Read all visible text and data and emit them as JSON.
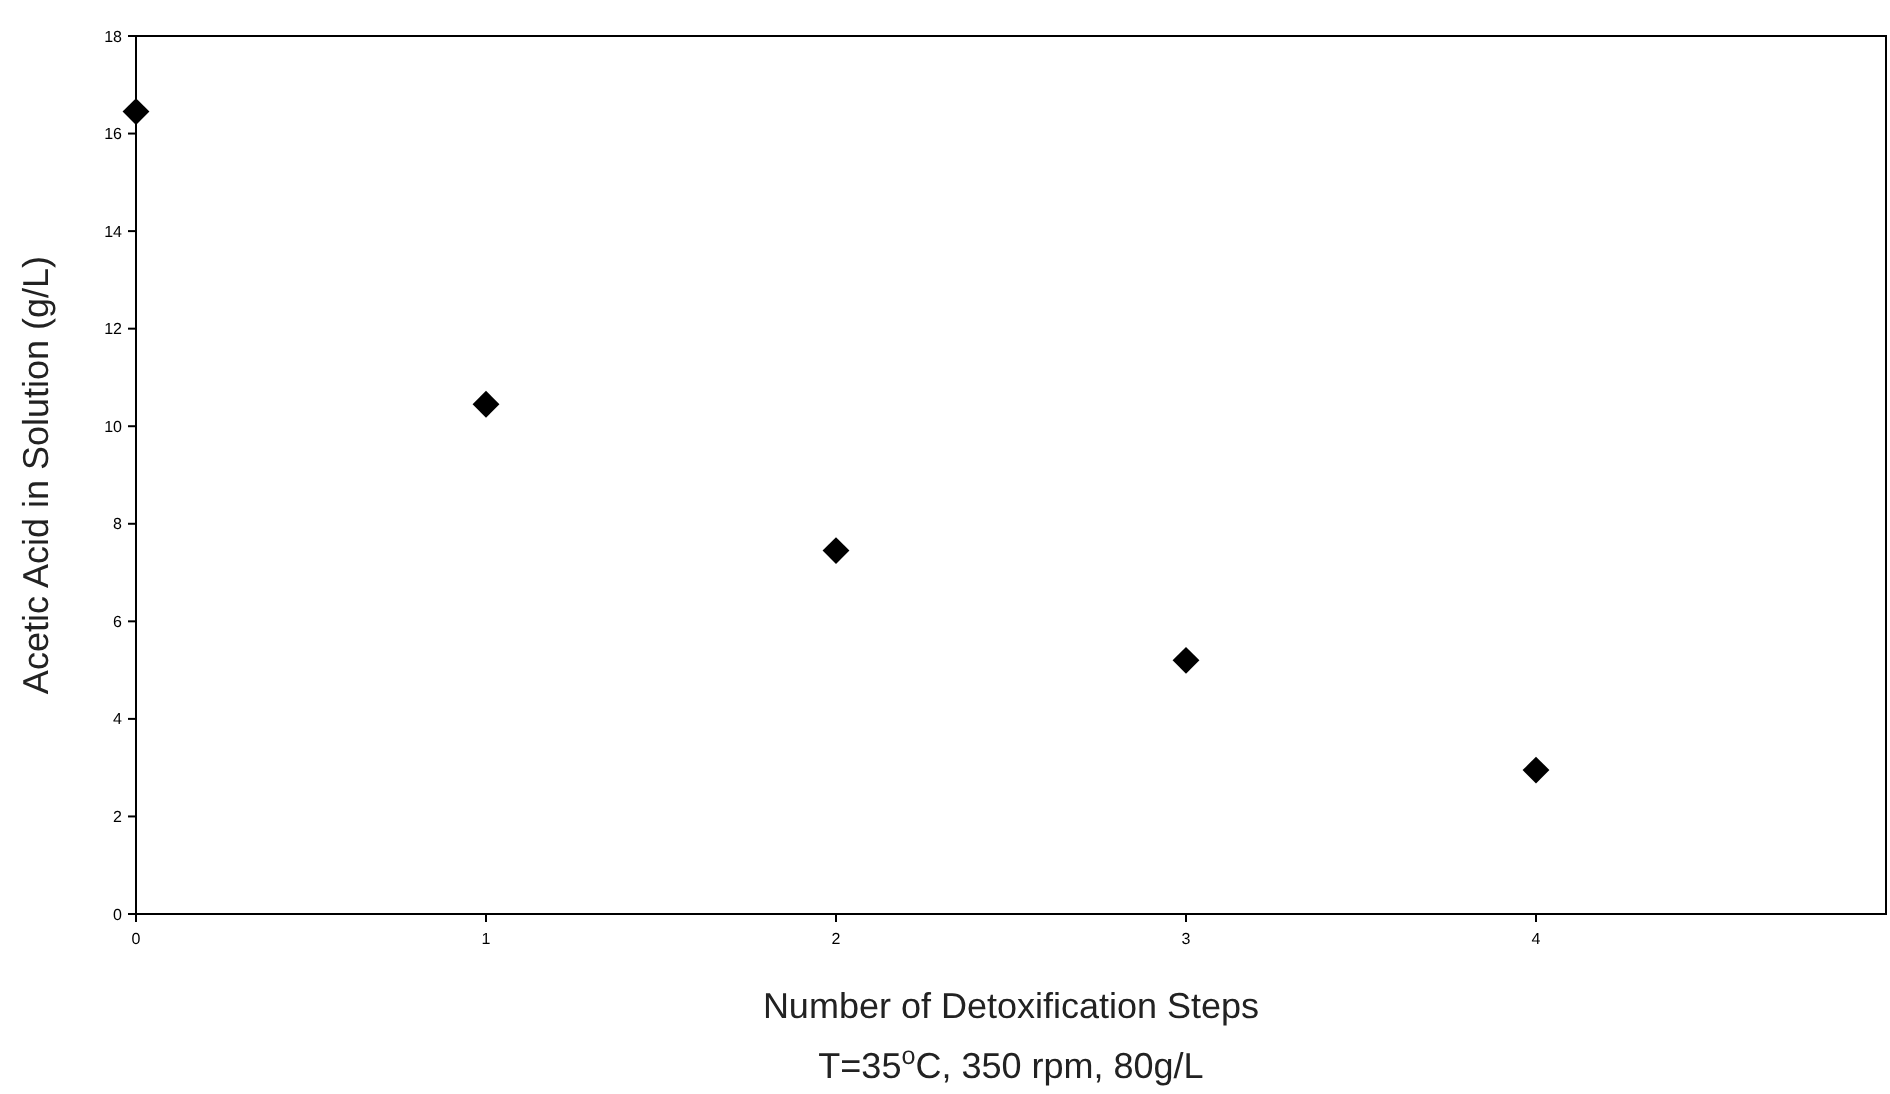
{
  "chart_data": {
    "type": "scatter",
    "xlabel": "Number of Detoxification Steps",
    "ylabel": "Acetic Acid in Solution (g/L)",
    "annotations": [
      "T=35$^{o}$C, 350 rpm, 80g/L"
    ],
    "x": [
      0,
      1,
      2,
      3,
      4
    ],
    "series": [
      {
        "color": "#000000",
        "values": [
          16.45,
          10.45,
          7.45,
          5.2,
          2.95
        ]
      }
    ],
    "xlim": [
      0,
      5
    ],
    "xticks": [
      0,
      1,
      2,
      3,
      4
    ],
    "ylim": [
      0,
      18
    ],
    "yticks": [
      0,
      2,
      4,
      6,
      8,
      10,
      12,
      14,
      16,
      18
    ],
    "grid": false,
    "marker": "diamond"
  }
}
